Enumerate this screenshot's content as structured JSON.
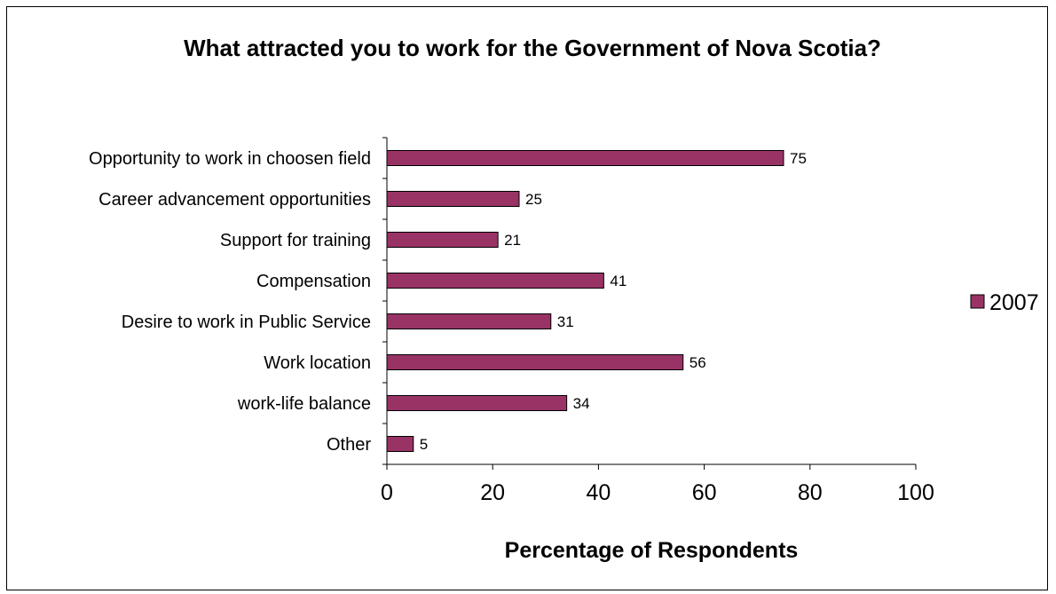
{
  "chart_data": {
    "type": "bar",
    "orientation": "horizontal",
    "title": "What attracted you to work for the Government of Nova Scotia?",
    "categories": [
      "Opportunity to work in choosen field",
      "Career advancement opportunities",
      "Support for training",
      "Compensation",
      "Desire to work in Public Service",
      "Work location",
      "work-life balance",
      "Other"
    ],
    "series": [
      {
        "name": "2007",
        "values": [
          75,
          25,
          21,
          41,
          31,
          56,
          34,
          5
        ]
      }
    ],
    "xlabel": "Percentage of Respondents",
    "ylabel": "",
    "xlim": [
      0,
      100
    ],
    "xticks": [
      0,
      20,
      40,
      60,
      80,
      100
    ],
    "grid": false,
    "legend_position": "right",
    "bar_color": "#993366",
    "data_labels": true
  }
}
